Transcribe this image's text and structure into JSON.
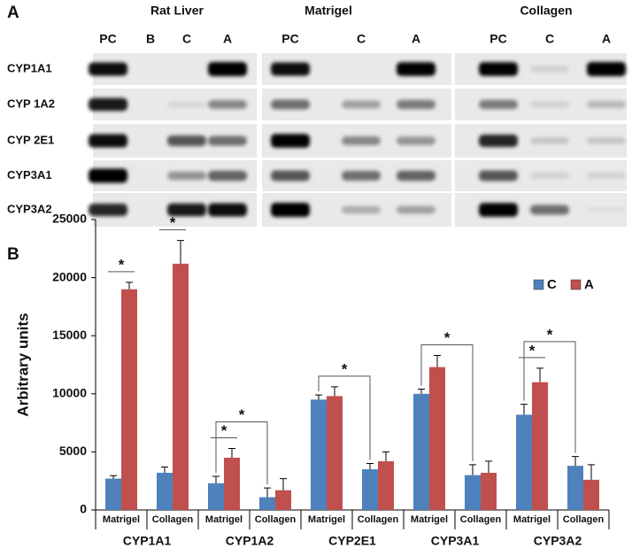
{
  "panel_a": {
    "label": "A",
    "rows": [
      "CYP1A1",
      "CYP 1A2",
      "CYP 2E1",
      "CYP3A1",
      "CYP3A2"
    ],
    "blots": [
      {
        "title": "Rat Liver",
        "lanes": [
          "PC",
          "B",
          "C",
          "A"
        ]
      },
      {
        "title": "Matrigel",
        "lanes": [
          "PC",
          "C",
          "A"
        ]
      },
      {
        "title": "Collagen",
        "lanes": [
          "PC",
          "C",
          "A"
        ]
      }
    ]
  },
  "chart_data": {
    "type": "bar",
    "label": "B",
    "y_label": "Arbitrary units",
    "categories": [
      "Matrigel",
      "Collagen",
      "Matrigel",
      "Collagen",
      "Matrigel",
      "Collagen",
      "Matrigel",
      "Collagen",
      "Matrigel",
      "Collagen"
    ],
    "groups": [
      "CYP1A1",
      "CYP1A2",
      "CYP2E1",
      "CYP3A1",
      "CYP3A2"
    ],
    "series": [
      {
        "name": "C",
        "color": "#4f81bd",
        "values": [
          2700,
          3200,
          2300,
          1100,
          9500,
          3500,
          10000,
          3000,
          8200,
          3800
        ],
        "errors": [
          250,
          500,
          600,
          800,
          400,
          500,
          400,
          900,
          900,
          800
        ]
      },
      {
        "name": "A",
        "color": "#c0504d",
        "values": [
          19000,
          21200,
          4500,
          1700,
          9800,
          4200,
          12300,
          3200,
          11000,
          2600
        ],
        "errors": [
          600,
          2000,
          800,
          1000,
          800,
          800,
          1000,
          1000,
          1200,
          1300
        ]
      }
    ],
    "ylim": [
      0,
      25000
    ],
    "yticks": [
      0,
      5000,
      10000,
      15000,
      20000,
      25000
    ],
    "legend": "top-right",
    "annotations": [
      {
        "text": "*",
        "bars": [
          [
            0,
            0
          ],
          [
            1,
            0
          ]
        ]
      },
      {
        "text": "*",
        "bars": [
          [
            0,
            1
          ],
          [
            1,
            1
          ]
        ]
      },
      {
        "text": "*",
        "bars": [
          [
            0,
            2
          ],
          [
            1,
            2
          ]
        ]
      },
      {
        "text": "*",
        "bars": [
          [
            0,
            2
          ],
          [
            0,
            3
          ]
        ]
      },
      {
        "text": "*",
        "bars": [
          [
            0,
            4
          ],
          [
            0,
            5
          ]
        ]
      },
      {
        "text": "*",
        "bars": [
          [
            0,
            6
          ],
          [
            0,
            7
          ]
        ]
      },
      {
        "text": "*",
        "bars": [
          [
            0,
            8
          ],
          [
            1,
            8
          ]
        ]
      },
      {
        "text": "*",
        "bars": [
          [
            0,
            8
          ],
          [
            0,
            9
          ]
        ]
      }
    ]
  }
}
